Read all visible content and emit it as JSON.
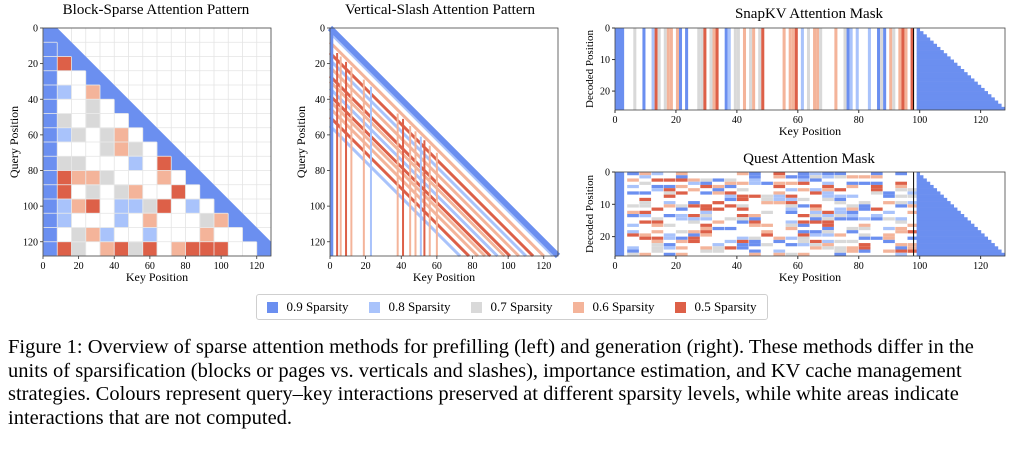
{
  "colors": {
    "s09": "#6b8ff0",
    "s08": "#a9c3fb",
    "s07": "#d9d9d9",
    "s06": "#f4b49a",
    "s05": "#dd6048"
  },
  "charts": {
    "block": {
      "title": "Block-Sparse Attention Pattern",
      "xlabel": "Key Position",
      "ylabel": "Query Position",
      "xticks": [
        "0",
        "20",
        "40",
        "60",
        "80",
        "100",
        "120"
      ],
      "yticks": [
        "0",
        "20",
        "40",
        "60",
        "80",
        "100",
        "120"
      ]
    },
    "vslash": {
      "title": "Vertical-Slash Attention Pattern",
      "xlabel": "Key Position",
      "ylabel": "Query Position",
      "xticks": [
        "0",
        "20",
        "40",
        "60",
        "80",
        "100",
        "120"
      ],
      "yticks": [
        "0",
        "20",
        "40",
        "60",
        "80",
        "100",
        "120"
      ]
    },
    "snapkv": {
      "title": "SnapKV Attention Mask",
      "xlabel": "Key Position",
      "ylabel": "Decoded Position",
      "xticks": [
        "0",
        "20",
        "40",
        "60",
        "80",
        "100",
        "120"
      ],
      "yticks": [
        "0",
        "10",
        "20"
      ]
    },
    "quest": {
      "title": "Quest Attention Mask",
      "xlabel": "Key Position",
      "ylabel": "Decoded Position",
      "xticks": [
        "0",
        "20",
        "40",
        "60",
        "80",
        "100",
        "120"
      ],
      "yticks": [
        "0",
        "10",
        "20"
      ]
    }
  },
  "legend": [
    {
      "label": "0.9 Sparsity",
      "color": "#6b8ff0"
    },
    {
      "label": "0.8 Sparsity",
      "color": "#a9c3fb"
    },
    {
      "label": "0.7 Sparsity",
      "color": "#d9d9d9"
    },
    {
      "label": "0.6 Sparsity",
      "color": "#f4b49a"
    },
    {
      "label": "0.5 Sparsity",
      "color": "#dd6048"
    }
  ],
  "caption": "Figure 1: Overview of sparse attention methods for prefilling (left) and generation (right). These methods differ in the units of sparsification (blocks or pages vs. verticals and slashes), importance estimation, and KV cache management strategies. Colours represent query–key interactions preserved at different sparsity levels, while white areas indicate interactions that are not computed."
}
